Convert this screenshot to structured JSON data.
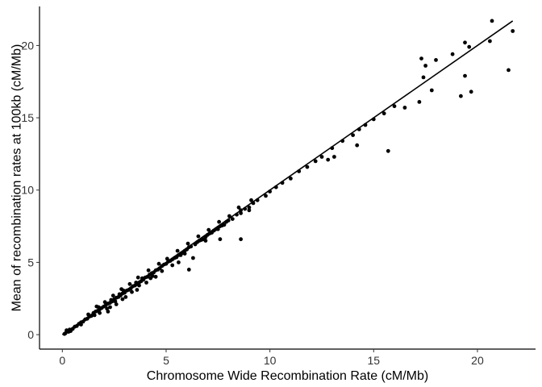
{
  "chart_data": {
    "type": "scatter",
    "title": "",
    "xlabel": "Chromosome Wide Recombination Rate (cM/Mb)",
    "ylabel": "Mean of recombination rates at 100kb (cM/Mb)",
    "xlim": [
      -1.1,
      22.8
    ],
    "ylim": [
      -1.0,
      22.7
    ],
    "x_ticks": [
      0,
      5,
      10,
      15,
      20
    ],
    "y_ticks": [
      0,
      5,
      10,
      15,
      20
    ],
    "x_tick_labels": [
      "0",
      "5",
      "10",
      "15",
      "20"
    ],
    "y_tick_labels": [
      "0",
      "5",
      "10",
      "15",
      "20"
    ],
    "grid": false,
    "legend": "none",
    "point_color": "#000000",
    "series": [
      {
        "points": [
          [
            0.1,
            0.05
          ],
          [
            0.15,
            0.1
          ],
          [
            0.2,
            0.3
          ],
          [
            0.3,
            0.2
          ],
          [
            0.35,
            0.35
          ],
          [
            0.4,
            0.25
          ],
          [
            0.5,
            0.4
          ],
          [
            0.6,
            0.55
          ],
          [
            0.7,
            0.6
          ],
          [
            0.8,
            0.75
          ],
          [
            0.9,
            0.85
          ],
          [
            1.0,
            0.9
          ],
          [
            1.1,
            1.05
          ],
          [
            1.2,
            1.1
          ],
          [
            1.3,
            1.25
          ],
          [
            1.4,
            1.3
          ],
          [
            1.5,
            1.5
          ],
          [
            1.55,
            1.35
          ],
          [
            1.6,
            1.6
          ],
          [
            1.7,
            1.65
          ],
          [
            1.75,
            1.9
          ],
          [
            1.8,
            1.75
          ],
          [
            1.9,
            1.85
          ],
          [
            2.0,
            1.95
          ],
          [
            2.1,
            2.05
          ],
          [
            2.15,
            1.8
          ],
          [
            2.2,
            2.15
          ],
          [
            2.3,
            2.2
          ],
          [
            2.35,
            2.4
          ],
          [
            2.4,
            2.3
          ],
          [
            2.5,
            2.45
          ],
          [
            2.55,
            2.3
          ],
          [
            2.6,
            2.55
          ],
          [
            2.7,
            2.6
          ],
          [
            2.75,
            2.8
          ],
          [
            2.8,
            2.7
          ],
          [
            2.9,
            2.85
          ],
          [
            2.95,
            3.05
          ],
          [
            3.0,
            2.9
          ],
          [
            3.05,
            2.6
          ],
          [
            3.1,
            3.05
          ],
          [
            3.2,
            3.1
          ],
          [
            3.3,
            3.2
          ],
          [
            3.35,
            2.95
          ],
          [
            3.4,
            3.35
          ],
          [
            3.5,
            3.4
          ],
          [
            3.55,
            3.6
          ],
          [
            3.6,
            3.5
          ],
          [
            3.7,
            3.6
          ],
          [
            3.8,
            3.7
          ],
          [
            3.85,
            3.9
          ],
          [
            3.9,
            3.8
          ],
          [
            4.0,
            3.95
          ],
          [
            4.05,
            3.6
          ],
          [
            4.1,
            4.0
          ],
          [
            4.2,
            4.15
          ],
          [
            4.3,
            4.25
          ],
          [
            4.35,
            4.05
          ],
          [
            4.4,
            4.3
          ],
          [
            4.5,
            4.45
          ],
          [
            4.6,
            4.5
          ],
          [
            4.7,
            4.6
          ],
          [
            4.8,
            4.75
          ],
          [
            4.9,
            4.85
          ],
          [
            5.0,
            4.9
          ],
          [
            5.1,
            5.05
          ],
          [
            5.2,
            5.1
          ],
          [
            5.3,
            5.2
          ],
          [
            5.4,
            5.3
          ],
          [
            5.5,
            5.35
          ],
          [
            5.6,
            5.5
          ],
          [
            5.7,
            5.6
          ],
          [
            5.8,
            5.65
          ],
          [
            5.9,
            5.8
          ],
          [
            6.0,
            5.9
          ],
          [
            6.1,
            6.05
          ],
          [
            6.2,
            6.1
          ],
          [
            6.3,
            5.3
          ],
          [
            6.4,
            6.25
          ],
          [
            6.5,
            6.4
          ],
          [
            6.6,
            6.5
          ],
          [
            6.7,
            6.55
          ],
          [
            6.8,
            6.6
          ],
          [
            6.9,
            6.75
          ],
          [
            7.0,
            6.9
          ],
          [
            7.1,
            7.0
          ],
          [
            7.2,
            7.05
          ],
          [
            7.3,
            7.2
          ],
          [
            7.4,
            7.3
          ],
          [
            7.5,
            7.4
          ],
          [
            7.6,
            7.5
          ],
          [
            7.7,
            7.55
          ],
          [
            7.8,
            7.6
          ],
          [
            7.9,
            7.8
          ],
          [
            8.0,
            7.9
          ],
          [
            8.2,
            8.0
          ],
          [
            8.4,
            8.3
          ],
          [
            8.6,
            8.4
          ],
          [
            8.8,
            8.7
          ],
          [
            9.0,
            8.8
          ],
          [
            9.2,
            9.1
          ],
          [
            9.4,
            9.3
          ],
          [
            9.8,
            9.6
          ],
          [
            10.0,
            9.9
          ],
          [
            10.3,
            10.2
          ],
          [
            10.6,
            10.5
          ],
          [
            11.0,
            10.8
          ],
          [
            11.4,
            11.3
          ],
          [
            11.8,
            11.6
          ],
          [
            12.2,
            12.0
          ],
          [
            12.5,
            12.3
          ],
          [
            13.0,
            12.9
          ],
          [
            13.5,
            13.4
          ],
          [
            14.0,
            13.8
          ],
          [
            14.3,
            14.2
          ],
          [
            14.6,
            14.5
          ],
          [
            15.0,
            14.9
          ],
          [
            15.5,
            15.3
          ],
          [
            16.0,
            15.8
          ],
          [
            1.25,
            1.4
          ],
          [
            1.65,
            1.95
          ],
          [
            2.05,
            2.25
          ],
          [
            2.45,
            2.7
          ],
          [
            2.85,
            3.15
          ],
          [
            3.25,
            3.5
          ],
          [
            3.65,
            3.95
          ],
          [
            4.15,
            4.45
          ],
          [
            4.65,
            4.9
          ],
          [
            5.05,
            5.25
          ],
          [
            5.55,
            5.8
          ],
          [
            6.05,
            6.3
          ],
          [
            6.55,
            6.8
          ],
          [
            7.05,
            7.25
          ],
          [
            7.55,
            7.8
          ],
          [
            8.05,
            8.2
          ],
          [
            8.5,
            8.8
          ],
          [
            9.1,
            9.3
          ],
          [
            2.3,
            1.9
          ],
          [
            2.6,
            2.1
          ],
          [
            2.9,
            2.45
          ],
          [
            3.6,
            3.1
          ],
          [
            4.5,
            4.0
          ],
          [
            5.6,
            5.0
          ],
          [
            6.1,
            4.5
          ],
          [
            7.6,
            6.6
          ],
          [
            8.6,
            6.6
          ],
          [
            8.6,
            8.6
          ],
          [
            9.0,
            8.6
          ],
          [
            5.7,
            5.5
          ],
          [
            7.5,
            7.3
          ],
          [
            3.7,
            3.4
          ],
          [
            4.25,
            3.9
          ],
          [
            4.8,
            4.4
          ],
          [
            5.3,
            4.8
          ],
          [
            5.9,
            5.6
          ],
          [
            6.9,
            6.5
          ],
          [
            2.2,
            1.6
          ],
          [
            1.8,
            1.5
          ],
          [
            0.9,
            0.7
          ],
          [
            12.8,
            12.1
          ],
          [
            13.1,
            12.3
          ],
          [
            14.2,
            13.1
          ],
          [
            15.7,
            12.7
          ],
          [
            16.5,
            15.7
          ],
          [
            17.2,
            16.1
          ],
          [
            17.3,
            19.1
          ],
          [
            17.4,
            17.8
          ],
          [
            17.5,
            18.6
          ],
          [
            17.8,
            16.9
          ],
          [
            18.0,
            19.0
          ],
          [
            18.8,
            19.4
          ],
          [
            19.2,
            16.5
          ],
          [
            19.4,
            17.9
          ],
          [
            19.4,
            20.2
          ],
          [
            19.6,
            19.9
          ],
          [
            19.7,
            16.8
          ],
          [
            20.6,
            20.3
          ],
          [
            20.7,
            21.7
          ],
          [
            21.5,
            18.3
          ],
          [
            21.7,
            21.0
          ]
        ]
      }
    ],
    "fit_line": {
      "x": [
        0,
        21.7
      ],
      "y": [
        0,
        21.7
      ]
    }
  }
}
